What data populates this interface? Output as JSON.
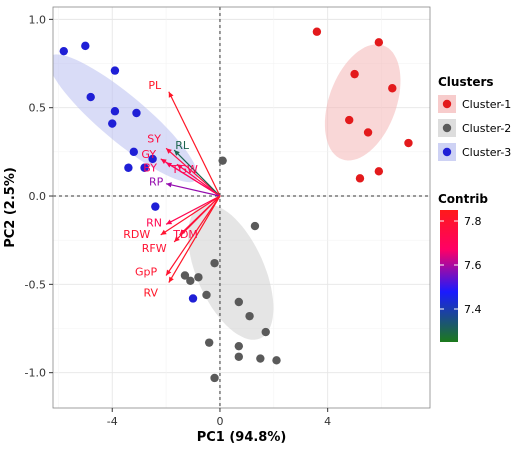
{
  "chart_data": {
    "type": "scatter",
    "xlabel": "PC1 (94.8%)",
    "ylabel": "PC2 (2.5%)",
    "xlim": [
      -6.2,
      7.8
    ],
    "ylim": [
      -1.2,
      1.07
    ],
    "x_ticks": [
      -4,
      0,
      4
    ],
    "y_ticks": [
      -1.0,
      -0.5,
      0.0,
      0.5,
      1.0
    ],
    "x_tick_labels": [
      "-4",
      "0",
      "4"
    ],
    "y_tick_labels": [
      "-1.0",
      "-0.5",
      "0.0",
      "0.5",
      "1.0"
    ],
    "grid": true,
    "legend_position": "right",
    "clusters": {
      "title": "Clusters",
      "entries": [
        {
          "label": "Cluster-1",
          "point_color": "#e31a1c",
          "ellipse_color": "#f4b6b6"
        },
        {
          "label": "Cluster-2",
          "point_color": "#5a5a5a",
          "ellipse_color": "#cfcfcf"
        },
        {
          "label": "Cluster-3",
          "point_color": "#1f1fd6",
          "ellipse_color": "#b9bff0"
        }
      ]
    },
    "contrib_legend": {
      "title": "Contrib",
      "tick_labels": [
        "7.8",
        "7.6",
        "7.4"
      ],
      "ticks": [
        7.8,
        7.6,
        7.4
      ],
      "range": [
        7.25,
        7.85
      ],
      "gradient": [
        "#ff1a1a",
        "#ff0066",
        "#1a1aff",
        "#1c7a1c"
      ]
    },
    "series": [
      {
        "name": "Cluster-1",
        "points": [
          [
            3.6,
            0.93
          ],
          [
            5.9,
            0.87
          ],
          [
            5.0,
            0.69
          ],
          [
            6.4,
            0.61
          ],
          [
            4.8,
            0.43
          ],
          [
            5.5,
            0.36
          ],
          [
            7.0,
            0.3
          ],
          [
            5.9,
            0.14
          ],
          [
            5.2,
            0.1
          ]
        ]
      },
      {
        "name": "Cluster-2",
        "points": [
          [
            0.1,
            0.2
          ],
          [
            1.3,
            -0.17
          ],
          [
            -0.2,
            -0.38
          ],
          [
            -1.3,
            -0.45
          ],
          [
            -1.1,
            -0.48
          ],
          [
            -0.8,
            -0.46
          ],
          [
            -0.5,
            -0.56
          ],
          [
            0.7,
            -0.6
          ],
          [
            1.1,
            -0.68
          ],
          [
            0.7,
            -0.85
          ],
          [
            1.7,
            -0.77
          ],
          [
            -0.4,
            -0.83
          ],
          [
            0.7,
            -0.91
          ],
          [
            1.5,
            -0.92
          ],
          [
            2.1,
            -0.93
          ],
          [
            -0.2,
            -1.03
          ]
        ]
      },
      {
        "name": "Cluster-3",
        "points": [
          [
            -5.8,
            0.82
          ],
          [
            -5.0,
            0.85
          ],
          [
            -3.9,
            0.71
          ],
          [
            -4.8,
            0.56
          ],
          [
            -3.9,
            0.48
          ],
          [
            -3.1,
            0.47
          ],
          [
            -4.0,
            0.41
          ],
          [
            -3.2,
            0.25
          ],
          [
            -2.5,
            0.21
          ],
          [
            -3.4,
            0.16
          ],
          [
            -2.8,
            0.16
          ],
          [
            -2.4,
            -0.06
          ],
          [
            -1.0,
            -0.58
          ]
        ]
      }
    ],
    "variables": [
      {
        "label": "PL",
        "x": -1.9,
        "y": 0.59,
        "contrib": 7.82
      },
      {
        "label": "SY",
        "x": -2.0,
        "y": 0.27,
        "contrib": 7.76
      },
      {
        "label": "RL",
        "x": -1.7,
        "y": 0.26,
        "contrib": 7.3
      },
      {
        "label": "GY",
        "x": -2.2,
        "y": 0.21,
        "contrib": 7.74
      },
      {
        "label": "BY",
        "x": -2.0,
        "y": 0.19,
        "contrib": 7.7
      },
      {
        "label": "TGW",
        "x": -1.6,
        "y": 0.18,
        "contrib": 7.72
      },
      {
        "label": "RP",
        "x": -2.0,
        "y": 0.07,
        "contrib": 7.58
      },
      {
        "label": "RN",
        "x": -2.0,
        "y": -0.16,
        "contrib": 7.72
      },
      {
        "label": "RDW",
        "x": -2.2,
        "y": -0.22,
        "contrib": 7.8
      },
      {
        "label": "TDM",
        "x": -1.5,
        "y": -0.22,
        "contrib": 7.75
      },
      {
        "label": "RFW",
        "x": -1.7,
        "y": -0.26,
        "contrib": 7.79
      },
      {
        "label": "GpP",
        "x": -2.0,
        "y": -0.45,
        "contrib": 7.8
      },
      {
        "label": "RV",
        "x": -1.9,
        "y": -0.49,
        "contrib": 7.82
      }
    ],
    "ellipses": [
      {
        "cluster": "Cluster-1",
        "cx": 5.3,
        "cy": 0.53,
        "a": 2.25,
        "b": 1.25,
        "angle_deg": 70
      },
      {
        "cluster": "Cluster-2",
        "cx": 0.4,
        "cy": -0.43,
        "a": 2.7,
        "b": 1.25,
        "angle_deg": -66
      },
      {
        "cluster": "Cluster-3",
        "cx": -3.6,
        "cy": 0.44,
        "a": 3.55,
        "b": 0.85,
        "angle_deg": -40
      }
    ]
  }
}
